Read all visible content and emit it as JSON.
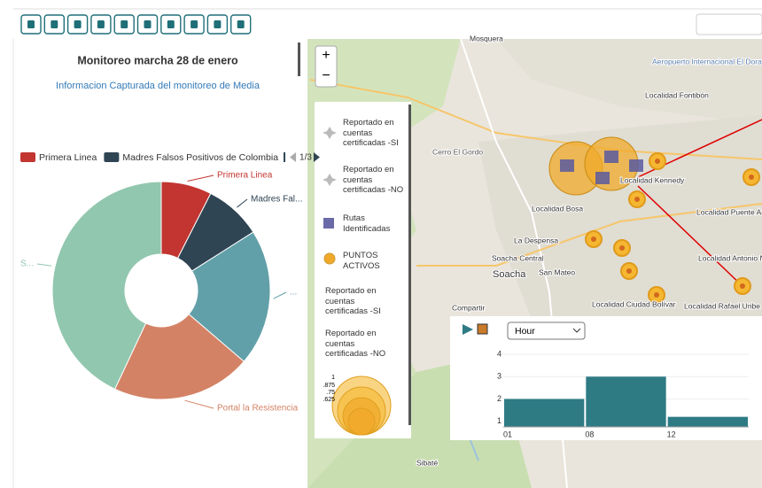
{
  "chart_data": [
    {
      "type": "pie",
      "title": "Monitoreo marcha 28 de enero",
      "subtitle": "Informacion Capturada del monitoreo de Media",
      "categories": [
        "Primera Linea",
        "Madres Falsos Positivos de Colombia",
        "",
        "Portal la Resistencia",
        ""
      ],
      "values": [
        7.5,
        8.5,
        20.3,
        20.7,
        43
      ],
      "slice_labels": [
        "Primera Linea",
        "Madres Fal...",
        "...",
        "Portal la Resistencia",
        "S..."
      ],
      "colors": [
        "#c23531",
        "#2f4554",
        "#61a0a8",
        "#d48265",
        "#91c7ae"
      ],
      "legend_page": "1/3"
    },
    {
      "type": "bar",
      "categories": [
        "01",
        "08",
        "12"
      ],
      "values": [
        2,
        3,
        1.2
      ],
      "color": "#2e7b84",
      "ylim": [
        0.75,
        4.2
      ],
      "yticks": [
        1,
        2,
        3,
        4
      ],
      "grid": true
    }
  ],
  "ui": {
    "zoom": [
      "+",
      "−"
    ],
    "histogram_interval": "Hour",
    "legend": [
      "Reportado en cuentas certificadas -SI",
      "Reportado en cuentas certificadas -NO",
      "Rutas Identificadas",
      "PUNTOS ACTIVOS",
      "Reportado en cuentas certificadas -SI",
      "Reportado en cuentas certificadas -NO"
    ],
    "size_legend": [
      "1",
      ".875",
      ".75",
      ".625"
    ],
    "places": [
      "Mosquera",
      "Aeropuerto Internacional El Dorado",
      "Localidad Fontibón",
      "Cerro El Gordo",
      "Localidad Kennedy",
      "Localidad Bosa",
      "Localidad Puente Aranda",
      "La Despensa",
      "Soacha Central",
      "Soacha",
      "San Mateo",
      "Localidad Antonio Nariño",
      "Localidad Ciudad Bolívar",
      "Localidad Rafael Uribe Uribe",
      "Compartir",
      "Sibaté"
    ]
  }
}
